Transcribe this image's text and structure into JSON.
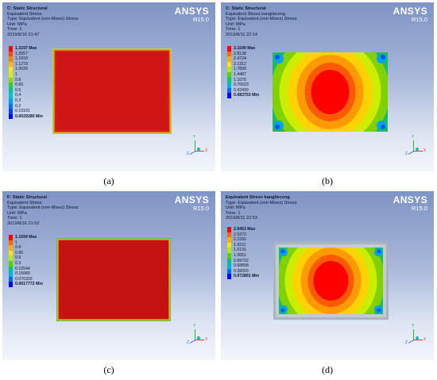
{
  "colors": {
    "scale": [
      "#ff0000",
      "#ff5a00",
      "#ff9b00",
      "#ffd200",
      "#ccec00",
      "#6cd400",
      "#21c05b",
      "#00c4b6",
      "#00a3e8",
      "#0058ff",
      "#0000ff"
    ],
    "model_red": "#d21a1a"
  },
  "panels": [
    {
      "header": [
        "C: Static Structural",
        "Equivalent Stress",
        "Type: Equivalent (von-Mises) Stress",
        "Unit: MPa",
        "Time: 1",
        "2019/8/16 21:47"
      ],
      "brand": "ANSYS",
      "version": "R15.0",
      "legend": [
        "1.3197 Max",
        "1.2557",
        "1.1918",
        "1.1279",
        "1.0639",
        "1",
        "0.8",
        "0.65",
        "0.5",
        "0.4",
        "0.3",
        "0.2",
        "0.10101",
        "0.0029280 Min"
      ],
      "caption": "(a)"
    },
    {
      "header": [
        "C: Static Structural",
        "Equivalent Stress kanglieceng",
        "Type: Equivalent (von-Mises) Stress",
        "Unit: MPa",
        "Time: 1",
        "2019/8/11 22:14"
      ],
      "brand": "ANSYS",
      "version": "R15.0",
      "legend": [
        "3.1549 Max",
        "2.8138",
        "2.4724",
        "2.1312",
        "1.7899",
        "1.4487",
        "1.1075",
        "0.76623",
        "0.42499",
        "0.083753 Min"
      ],
      "caption": "(b)"
    },
    {
      "header": [
        "F: Static Structural",
        "Equivalent Stress",
        "Type: Equivalent (von-Mises) Stress",
        "Unit: MPa",
        "Time: 1",
        "2019/8/16 21:52"
      ],
      "brand": "ANSYS",
      "version": "R15.0",
      "legend": [
        "1.1594 Max",
        "1",
        "0.8",
        "0.65",
        "0.5",
        "0.3",
        "0.22544",
        "0.15089",
        "0.076333",
        "0.0017772 Min"
      ],
      "caption": "(c)"
    },
    {
      "header": [
        "Equivalent Stress kanglieceng",
        "Type: Equivalent (von-Mises) Stress",
        "Unit: MPa",
        "Time: 1",
        "2019/8/11 22:53"
      ],
      "brand": "ANSYS",
      "version": "R15.0",
      "legend": [
        "2.8453 Max",
        "2.5372",
        "2.2292",
        "1.9211",
        "1.6131",
        "1.3051",
        "0.99702",
        "0.68898",
        "0.38093",
        "0.072891 Min"
      ],
      "caption": "(d)"
    }
  ]
}
